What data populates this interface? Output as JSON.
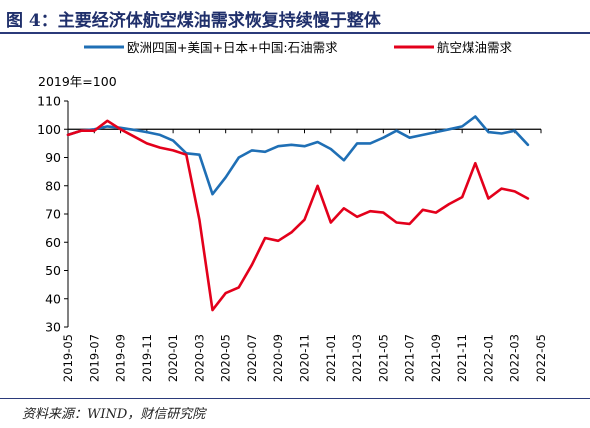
{
  "figure": {
    "title": "图 4：主要经济体航空煤油需求恢复持续慢于整体",
    "source": "资料来源：WIND，财信研究院"
  },
  "chart_data": {
    "type": "line",
    "unit_label": "2019年=100",
    "ylim": [
      30,
      110
    ],
    "yticks": [
      30,
      40,
      50,
      60,
      70,
      80,
      90,
      100,
      110
    ],
    "reference_line": 100,
    "legend_position": "top",
    "xticks": [
      "2019-05",
      "2019-07",
      "2019-09",
      "2019-11",
      "2020-01",
      "2020-03",
      "2020-05",
      "2020-07",
      "2020-09",
      "2020-11",
      "2021-01",
      "2021-03",
      "2021-05",
      "2021-07",
      "2021-09",
      "2021-11",
      "2022-01",
      "2022-03",
      "2022-05"
    ],
    "series": [
      {
        "name": "欧洲四国+美国+日本+中国:石油需求",
        "color": "#1f6fb5",
        "points": [
          [
            "2019-05",
            98
          ],
          [
            "2019-06",
            99.5
          ],
          [
            "2019-07",
            100
          ],
          [
            "2019-08",
            101
          ],
          [
            "2019-09",
            100.5
          ],
          [
            "2019-10",
            99.8
          ],
          [
            "2019-11",
            99
          ],
          [
            "2019-12",
            98
          ],
          [
            "2020-01",
            96
          ],
          [
            "2020-02",
            91.5
          ],
          [
            "2020-03",
            91
          ],
          [
            "2020-04",
            77
          ],
          [
            "2020-05",
            83
          ],
          [
            "2020-06",
            90
          ],
          [
            "2020-07",
            92.5
          ],
          [
            "2020-08",
            92
          ],
          [
            "2020-09",
            94
          ],
          [
            "2020-10",
            94.5
          ],
          [
            "2020-11",
            94
          ],
          [
            "2020-12",
            95.5
          ],
          [
            "2021-01",
            93
          ],
          [
            "2021-02",
            89
          ],
          [
            "2021-03",
            95
          ],
          [
            "2021-04",
            95
          ],
          [
            "2021-05",
            97
          ],
          [
            "2021-06",
            99.5
          ],
          [
            "2021-07",
            97
          ],
          [
            "2021-08",
            98
          ],
          [
            "2021-09",
            99
          ],
          [
            "2021-10",
            100
          ],
          [
            "2021-11",
            101
          ],
          [
            "2021-12",
            104.5
          ],
          [
            "2022-01",
            99
          ],
          [
            "2022-02",
            98.5
          ],
          [
            "2022-03",
            99.5
          ],
          [
            "2022-04",
            94.5
          ]
        ]
      },
      {
        "name": "航空煤油需求",
        "color": "#e3001b",
        "points": [
          [
            "2019-05",
            98
          ],
          [
            "2019-06",
            99.5
          ],
          [
            "2019-07",
            99.5
          ],
          [
            "2019-08",
            103
          ],
          [
            "2019-09",
            100
          ],
          [
            "2019-10",
            97.5
          ],
          [
            "2019-11",
            95
          ],
          [
            "2019-12",
            93.5
          ],
          [
            "2020-01",
            92.5
          ],
          [
            "2020-02",
            91
          ],
          [
            "2020-03",
            68
          ],
          [
            "2020-04",
            36
          ],
          [
            "2020-05",
            42
          ],
          [
            "2020-06",
            44
          ],
          [
            "2020-07",
            52
          ],
          [
            "2020-08",
            61.5
          ],
          [
            "2020-09",
            60.5
          ],
          [
            "2020-10",
            63.5
          ],
          [
            "2020-11",
            68
          ],
          [
            "2020-12",
            80
          ],
          [
            "2021-01",
            67
          ],
          [
            "2021-02",
            72
          ],
          [
            "2021-03",
            69
          ],
          [
            "2021-04",
            71
          ],
          [
            "2021-05",
            70.5
          ],
          [
            "2021-06",
            67
          ],
          [
            "2021-07",
            66.5
          ],
          [
            "2021-08",
            71.5
          ],
          [
            "2021-09",
            70.5
          ],
          [
            "2021-10",
            73.5
          ],
          [
            "2021-11",
            76
          ],
          [
            "2021-12",
            88
          ],
          [
            "2022-01",
            75.5
          ],
          [
            "2022-02",
            79
          ],
          [
            "2022-03",
            78
          ],
          [
            "2022-04",
            75.5
          ]
        ]
      }
    ]
  }
}
